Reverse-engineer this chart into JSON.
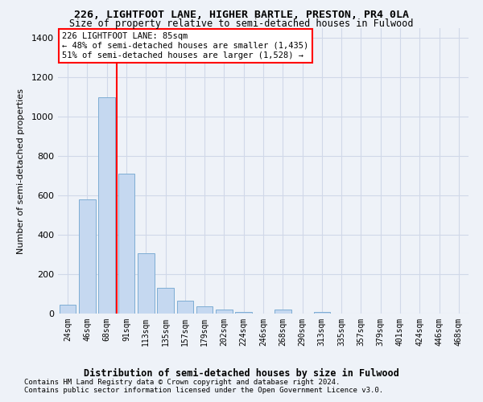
{
  "title": "226, LIGHTFOOT LANE, HIGHER BARTLE, PRESTON, PR4 0LA",
  "subtitle": "Size of property relative to semi-detached houses in Fulwood",
  "xlabel_bottom": "Distribution of semi-detached houses by size in Fulwood",
  "ylabel": "Number of semi-detached properties",
  "footnote": "Contains HM Land Registry data © Crown copyright and database right 2024.\nContains public sector information licensed under the Open Government Licence v3.0.",
  "categories": [
    "24sqm",
    "46sqm",
    "68sqm",
    "91sqm",
    "113sqm",
    "135sqm",
    "157sqm",
    "179sqm",
    "202sqm",
    "224sqm",
    "246sqm",
    "268sqm",
    "290sqm",
    "313sqm",
    "335sqm",
    "357sqm",
    "379sqm",
    "401sqm",
    "424sqm",
    "446sqm",
    "468sqm"
  ],
  "values": [
    45,
    580,
    1100,
    710,
    305,
    130,
    65,
    35,
    20,
    10,
    0,
    20,
    0,
    10,
    0,
    0,
    0,
    0,
    0,
    0,
    0
  ],
  "bar_color": "#c5d8f0",
  "bar_edge_color": "#7eadd4",
  "property_sqm": 85,
  "property_bar_index": 2,
  "annotation_title": "226 LIGHTFOOT LANE: 85sqm",
  "annotation_line1": "← 48% of semi-detached houses are smaller (1,435)",
  "annotation_line2": "51% of semi-detached houses are larger (1,528) →",
  "vline_color": "red",
  "annotation_box_color": "white",
  "annotation_box_edge": "red",
  "ylim": [
    0,
    1450
  ],
  "yticks": [
    0,
    200,
    400,
    600,
    800,
    1000,
    1200,
    1400
  ],
  "grid_color": "#d0d8e8",
  "bg_color": "#eef2f8",
  "plot_bg_color": "#eef2f8"
}
